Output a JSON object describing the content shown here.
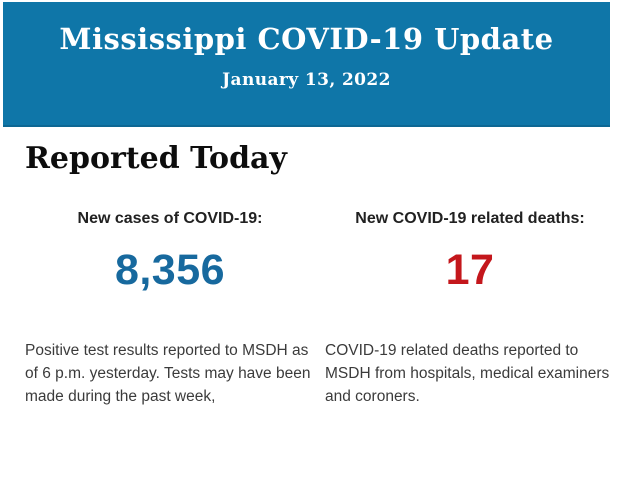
{
  "header": {
    "title": "Mississippi COVID-19 Update",
    "date": "January 13, 2022",
    "background_color": "#0F76A8",
    "text_color": "#FFFFFF"
  },
  "main": {
    "section_title": "Reported Today",
    "stats": [
      {
        "label": "New cases of COVID-19:",
        "value": "8,356",
        "value_color": "#17699E",
        "description": "Positive test results reported to MSDH as of 6 p.m. yesterday. Tests may have been made during the past week,"
      },
      {
        "label": "New COVID-19 related deaths:",
        "value": "17",
        "value_color": "#C4171C",
        "description": "COVID-19 related deaths reported to MSDH from hospitals, medical examiners and coroners."
      }
    ]
  }
}
